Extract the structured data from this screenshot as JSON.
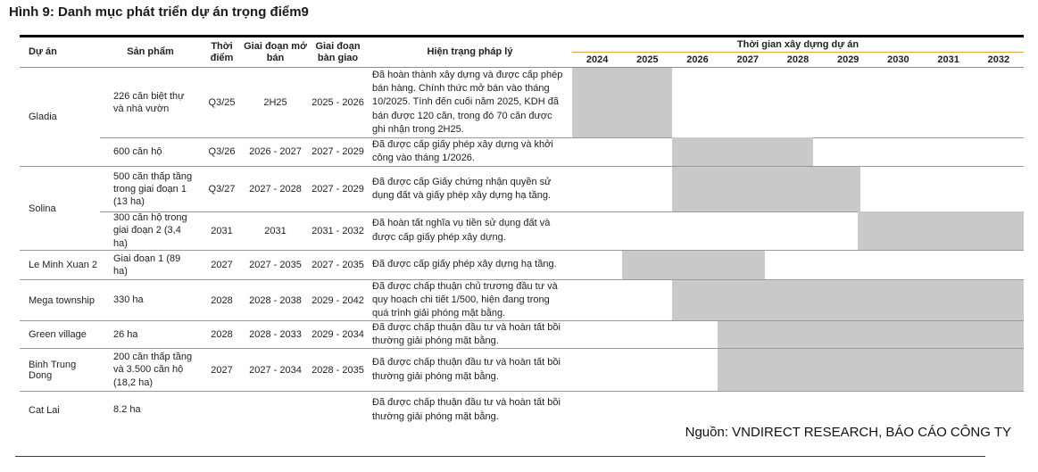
{
  "figure_title": "Hình 9: Danh mục phát triển dự án trọng điểm9",
  "source_note": "Nguồn: VNDIRECT RESEARCH, BÁO CÁO CÔNG TY",
  "colors": {
    "bar": "#c9c9c9",
    "timeline_underline": "#E2A33C"
  },
  "header": {
    "project": "Dự án",
    "product": "Sản phẩm",
    "time": "Thời điểm",
    "open_phase": "Giai đoạn mở bán",
    "handover_phase": "Giai đoạn bàn giao",
    "legal": "Hiện trạng pháp lý",
    "timeline": "Thời gian xây dựng dự án",
    "years": [
      "2024",
      "2025",
      "2026",
      "2027",
      "2028",
      "2029",
      "2030",
      "2031",
      "2032"
    ]
  },
  "timeline": {
    "start": 2024,
    "end": 2033
  },
  "rows": [
    {
      "project": "Gladia",
      "product": "226 căn biệt thự và nhà vườn",
      "time": "Q3/25",
      "open_phase": "2H25",
      "handover_phase": "2025 - 2026",
      "legal": "Đã hoàn thành xây dựng và được cấp phép bán hàng. Chính thức mở bán vào tháng 10/2025. Tính đến cuối năm 2025, KDH đã bán được 120 căn, trong đó 70 căn được ghi nhận trong 2H25.",
      "bar_start": 2024.0,
      "bar_end": 2026.0
    },
    {
      "project": "",
      "product": "600 căn hộ",
      "time": "Q3/26",
      "open_phase": "2026 - 2027",
      "handover_phase": "2027 - 2029",
      "legal": "Đã được cấp giấy phép xây dựng và khởi công vào tháng 1/2026.",
      "bar_start": 2026.0,
      "bar_end": 2028.8
    },
    {
      "project": "Solina",
      "product": "500 căn thấp tầng trong giai đoạn 1 (13 ha)",
      "time": "Q3/27",
      "open_phase": "2027 - 2028",
      "handover_phase": "2027 - 2029",
      "legal": "Đã được cấp Giấy chứng nhận quyền sử dụng đất và giấy phép xây dựng hạ tầng.",
      "bar_start": 2026.0,
      "bar_end": 2029.75
    },
    {
      "project": "",
      "product": "300 căn hộ trong giai đoạn 2 (3,4 ha)",
      "time": "2031",
      "open_phase": "2031",
      "handover_phase": "2031 - 2032",
      "legal": "Đã hoàn tất nghĩa vụ tiền sử dụng đất và được cấp giấy phép xây dựng.",
      "bar_start": 2029.7,
      "bar_end": 2033.0
    },
    {
      "project": "Le Minh Xuan 2",
      "product": "Giai đoạn 1 (89 ha)",
      "time": "2027",
      "open_phase": "2027 - 2035",
      "handover_phase": "2027 - 2035",
      "legal": "Đã được cấp giấy phép xây dựng hạ tầng.",
      "bar_start": 2025.0,
      "bar_end": 2027.85
    },
    {
      "project": "Mega township",
      "product": "330 ha",
      "time": "2028",
      "open_phase": "2028 - 2038",
      "handover_phase": "2029 - 2042",
      "legal": "Đã được chấp thuận chủ trương đầu tư và quy hoạch chi tiết 1/500, hiện đang trong quá trình giải phóng mặt bằng.",
      "bar_start": 2026.0,
      "bar_end": 2033.0
    },
    {
      "project": "Green village",
      "product": "26 ha",
      "time": "2028",
      "open_phase": "2028 - 2033",
      "handover_phase": "2029 - 2034",
      "legal": "Đã được chấp thuận đầu tư và hoàn tất bồi thường giải phóng mặt bằng.",
      "bar_start": 2026.9,
      "bar_end": 2033.0
    },
    {
      "project": "Binh Trung Dong",
      "product": "200 căn thấp tầng và 3.500 căn hộ (18,2 ha)",
      "time": "2027",
      "open_phase": "2027 - 2034",
      "handover_phase": "2028 - 2035",
      "legal": "Đã được chấp thuận đầu tư và hoàn tất bồi thường giải phóng mặt bằng.",
      "bar_start": 2026.9,
      "bar_end": 2033.0
    },
    {
      "project": "Cat Lai",
      "product": "8.2 ha",
      "time": "",
      "open_phase": "",
      "handover_phase": "",
      "legal": "Đã được chấp thuận đầu tư và hoàn tất bồi thường giải phóng mặt bằng.",
      "bar_start": null,
      "bar_end": null
    }
  ]
}
